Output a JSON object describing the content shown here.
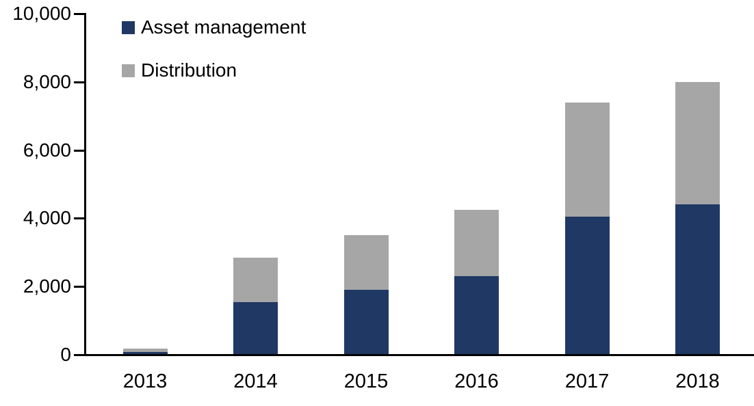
{
  "chart_data": {
    "type": "bar",
    "stacked": true,
    "title": "",
    "xlabel": "",
    "ylabel": "",
    "categories": [
      "2013",
      "2014",
      "2015",
      "2016",
      "2017",
      "2018"
    ],
    "series": [
      {
        "name": "Asset management",
        "color": "#1F3864",
        "values": [
          80,
          1550,
          1900,
          2300,
          4050,
          4400
        ]
      },
      {
        "name": "Distribution",
        "color": "#A6A6A6",
        "values": [
          100,
          1300,
          1600,
          1950,
          3350,
          3600
        ]
      }
    ],
    "totals": [
      180,
      2850,
      3500,
      4250,
      7400,
      8000
    ],
    "ylim": [
      0,
      10000
    ],
    "ytick_interval": 2000,
    "ytick_labels": [
      "0",
      "2,000",
      "4,000",
      "6,000",
      "8,000",
      "10,000"
    ],
    "grid": false,
    "legend_position": "top-left-inside",
    "axis_color": "#000000",
    "text_color": "#000000"
  }
}
